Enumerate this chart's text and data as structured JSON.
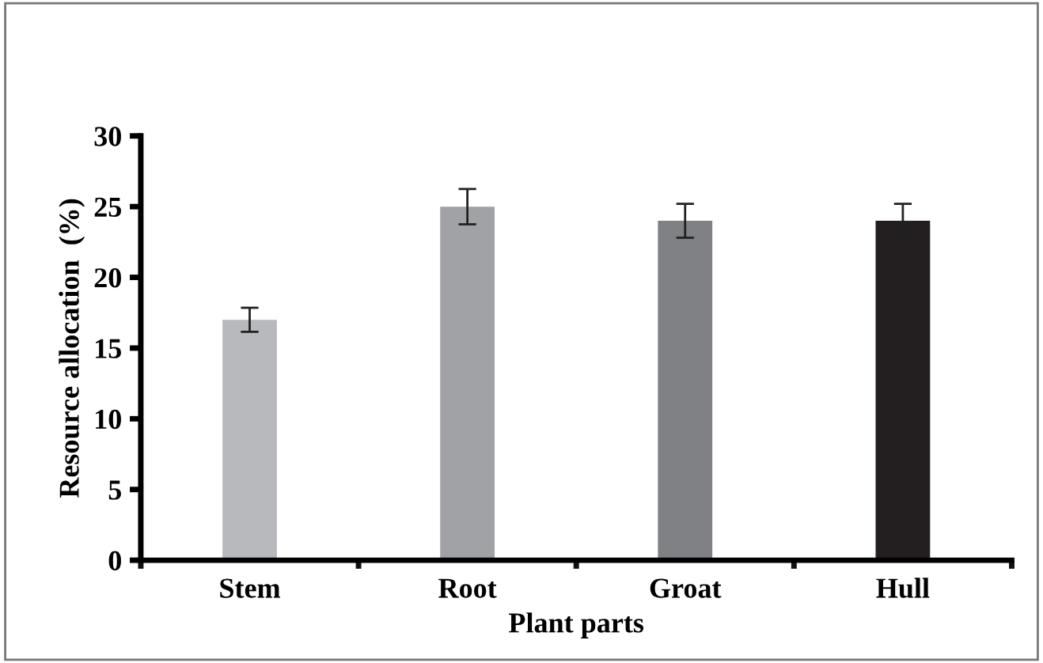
{
  "chart_data": {
    "type": "bar",
    "xlabel": "Plant parts",
    "ylabel": "Resource allocation  (%)",
    "categories": [
      "Stem",
      "Root",
      "Groat",
      "Hull"
    ],
    "values": [
      17,
      25,
      24,
      24
    ],
    "errors": [
      0.85,
      1.25,
      1.2,
      1.2
    ],
    "colors": [
      "#b8b9bd",
      "#a1a2a6",
      "#808185",
      "#231f20"
    ],
    "ylim": [
      0,
      30
    ],
    "yticks": [
      0,
      5,
      10,
      15,
      20,
      25,
      30
    ],
    "grid": false,
    "legend": false
  }
}
